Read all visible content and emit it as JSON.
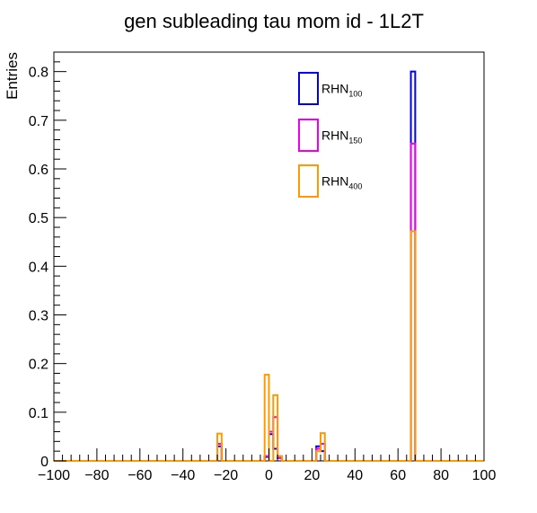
{
  "chart_data": {
    "type": "histogram",
    "title": "gen subleading tau mom id - 1L2T",
    "xlabel": "",
    "ylabel": "Entries",
    "xlim": [
      -100,
      100
    ],
    "ylim": [
      0,
      0.84
    ],
    "x_ticks": [
      -100,
      -80,
      -60,
      -40,
      -20,
      0,
      20,
      40,
      60,
      80,
      100
    ],
    "y_ticks": [
      0,
      0.1,
      0.2,
      0.3,
      0.4,
      0.5,
      0.6,
      0.7,
      0.8
    ],
    "x_tick_labels": [
      "−100",
      "−80",
      "−60",
      "−40",
      "−20",
      "0",
      "20",
      "40",
      "60",
      "80",
      "100"
    ],
    "y_tick_labels": [
      "0",
      "0.1",
      "0.2",
      "0.3",
      "0.4",
      "0.5",
      "0.6",
      "0.7",
      "0.8"
    ],
    "bin_width": 2,
    "grid": false,
    "legend_position": "top-right",
    "series": [
      {
        "name": "RHN",
        "subscript": "100",
        "color": "#0000ee",
        "bins": [
          {
            "x": -24,
            "y": 0.03
          },
          {
            "x": -2,
            "y": 0.008
          },
          {
            "x": 0,
            "y": 0.055
          },
          {
            "x": 2,
            "y": 0.025
          },
          {
            "x": 4,
            "y": 0.006
          },
          {
            "x": 22,
            "y": 0.03
          },
          {
            "x": 24,
            "y": 0.02
          },
          {
            "x": 66,
            "y": 0.8
          }
        ]
      },
      {
        "name": "RHN",
        "subscript": "150",
        "color": "#ee00ee",
        "bins": [
          {
            "x": -24,
            "y": 0.035
          },
          {
            "x": -2,
            "y": 0.01
          },
          {
            "x": 0,
            "y": 0.06
          },
          {
            "x": 2,
            "y": 0.09
          },
          {
            "x": 4,
            "y": 0.006
          },
          {
            "x": 22,
            "y": 0.025
          },
          {
            "x": 24,
            "y": 0.035
          },
          {
            "x": 66,
            "y": 0.652
          }
        ]
      },
      {
        "name": "RHN",
        "subscript": "400",
        "color": "#ff9900",
        "bins": [
          {
            "x": -24,
            "y": 0.056
          },
          {
            "x": -2,
            "y": 0.177
          },
          {
            "x": 2,
            "y": 0.135
          },
          {
            "x": 4,
            "y": 0.01
          },
          {
            "x": 22,
            "y": 0.02
          },
          {
            "x": 24,
            "y": 0.057
          },
          {
            "x": 66,
            "y": 0.472
          }
        ]
      }
    ]
  }
}
